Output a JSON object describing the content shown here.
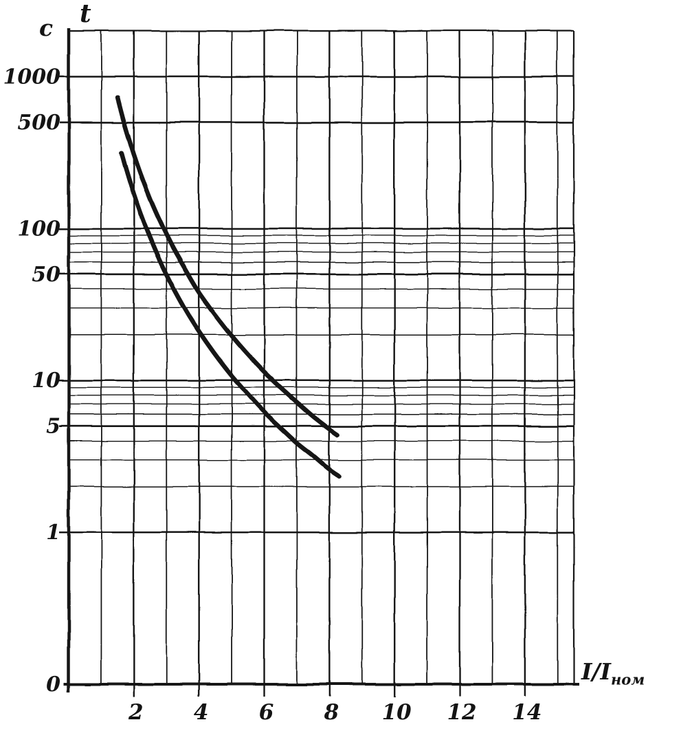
{
  "page": {
    "background": "#ffffff",
    "ink": "#141414"
  },
  "chart_data": {
    "type": "line",
    "title": "",
    "x_axis": {
      "label_main": "I/I",
      "label_sub": "ном",
      "scale": "linear",
      "min": 0,
      "max": 15.5,
      "minor_grid_step": 1,
      "tick_values": [
        2,
        4,
        6,
        8,
        10,
        12,
        14
      ],
      "tick_labels": [
        "2",
        "4",
        "6",
        "8",
        "10",
        "12",
        "14"
      ]
    },
    "y_axis": {
      "symbol": "t",
      "unit": "c",
      "scale": "log",
      "min": 0.1,
      "max": 2000,
      "ticks": [
        {
          "value": 1000,
          "label": "1000"
        },
        {
          "value": 500,
          "label": "500"
        },
        {
          "value": 100,
          "label": "100"
        },
        {
          "value": 50,
          "label": "50"
        },
        {
          "value": 10,
          "label": "10"
        },
        {
          "value": 5,
          "label": "5"
        },
        {
          "value": 1,
          "label": "1"
        },
        {
          "value": 0.1,
          "label": "0"
        }
      ],
      "grid_values_major": [
        1000,
        500,
        100,
        50,
        10,
        5,
        1
      ],
      "grid_values_minor": [
        90,
        80,
        70,
        60,
        40,
        30,
        20,
        9,
        8,
        7,
        6,
        4,
        3,
        2
      ]
    },
    "grid": true,
    "legend": "none",
    "series": [
      {
        "name": "upper-curve",
        "points": [
          [
            1.5,
            730
          ],
          [
            1.6,
            600
          ],
          [
            1.7,
            500
          ],
          [
            1.8,
            422
          ],
          [
            2.0,
            308
          ],
          [
            2.2,
            231
          ],
          [
            2.5,
            157
          ],
          [
            2.8,
            112
          ],
          [
            3.2,
            75
          ],
          [
            3.6,
            53
          ],
          [
            4.0,
            38
          ],
          [
            4.5,
            27
          ],
          [
            5.0,
            19.7
          ],
          [
            5.5,
            14.8
          ],
          [
            6.0,
            11.4
          ],
          [
            6.5,
            9.0
          ],
          [
            7.0,
            7.2
          ],
          [
            7.5,
            5.8
          ],
          [
            8.0,
            4.8
          ],
          [
            8.25,
            4.4
          ]
        ]
      },
      {
        "name": "lower-curve",
        "points": [
          [
            1.62,
            315
          ],
          [
            1.7,
            273
          ],
          [
            1.8,
            230
          ],
          [
            2.0,
            168
          ],
          [
            2.2,
            126
          ],
          [
            2.5,
            86
          ],
          [
            2.8,
            61
          ],
          [
            3.2,
            41
          ],
          [
            3.6,
            28.7
          ],
          [
            4.0,
            20.9
          ],
          [
            4.5,
            14.7
          ],
          [
            5.0,
            10.7
          ],
          [
            5.5,
            8.1
          ],
          [
            6.0,
            6.2
          ],
          [
            6.5,
            4.9
          ],
          [
            7.0,
            3.9
          ],
          [
            7.5,
            3.2
          ],
          [
            8.0,
            2.6
          ],
          [
            8.3,
            2.35
          ]
        ]
      }
    ]
  }
}
